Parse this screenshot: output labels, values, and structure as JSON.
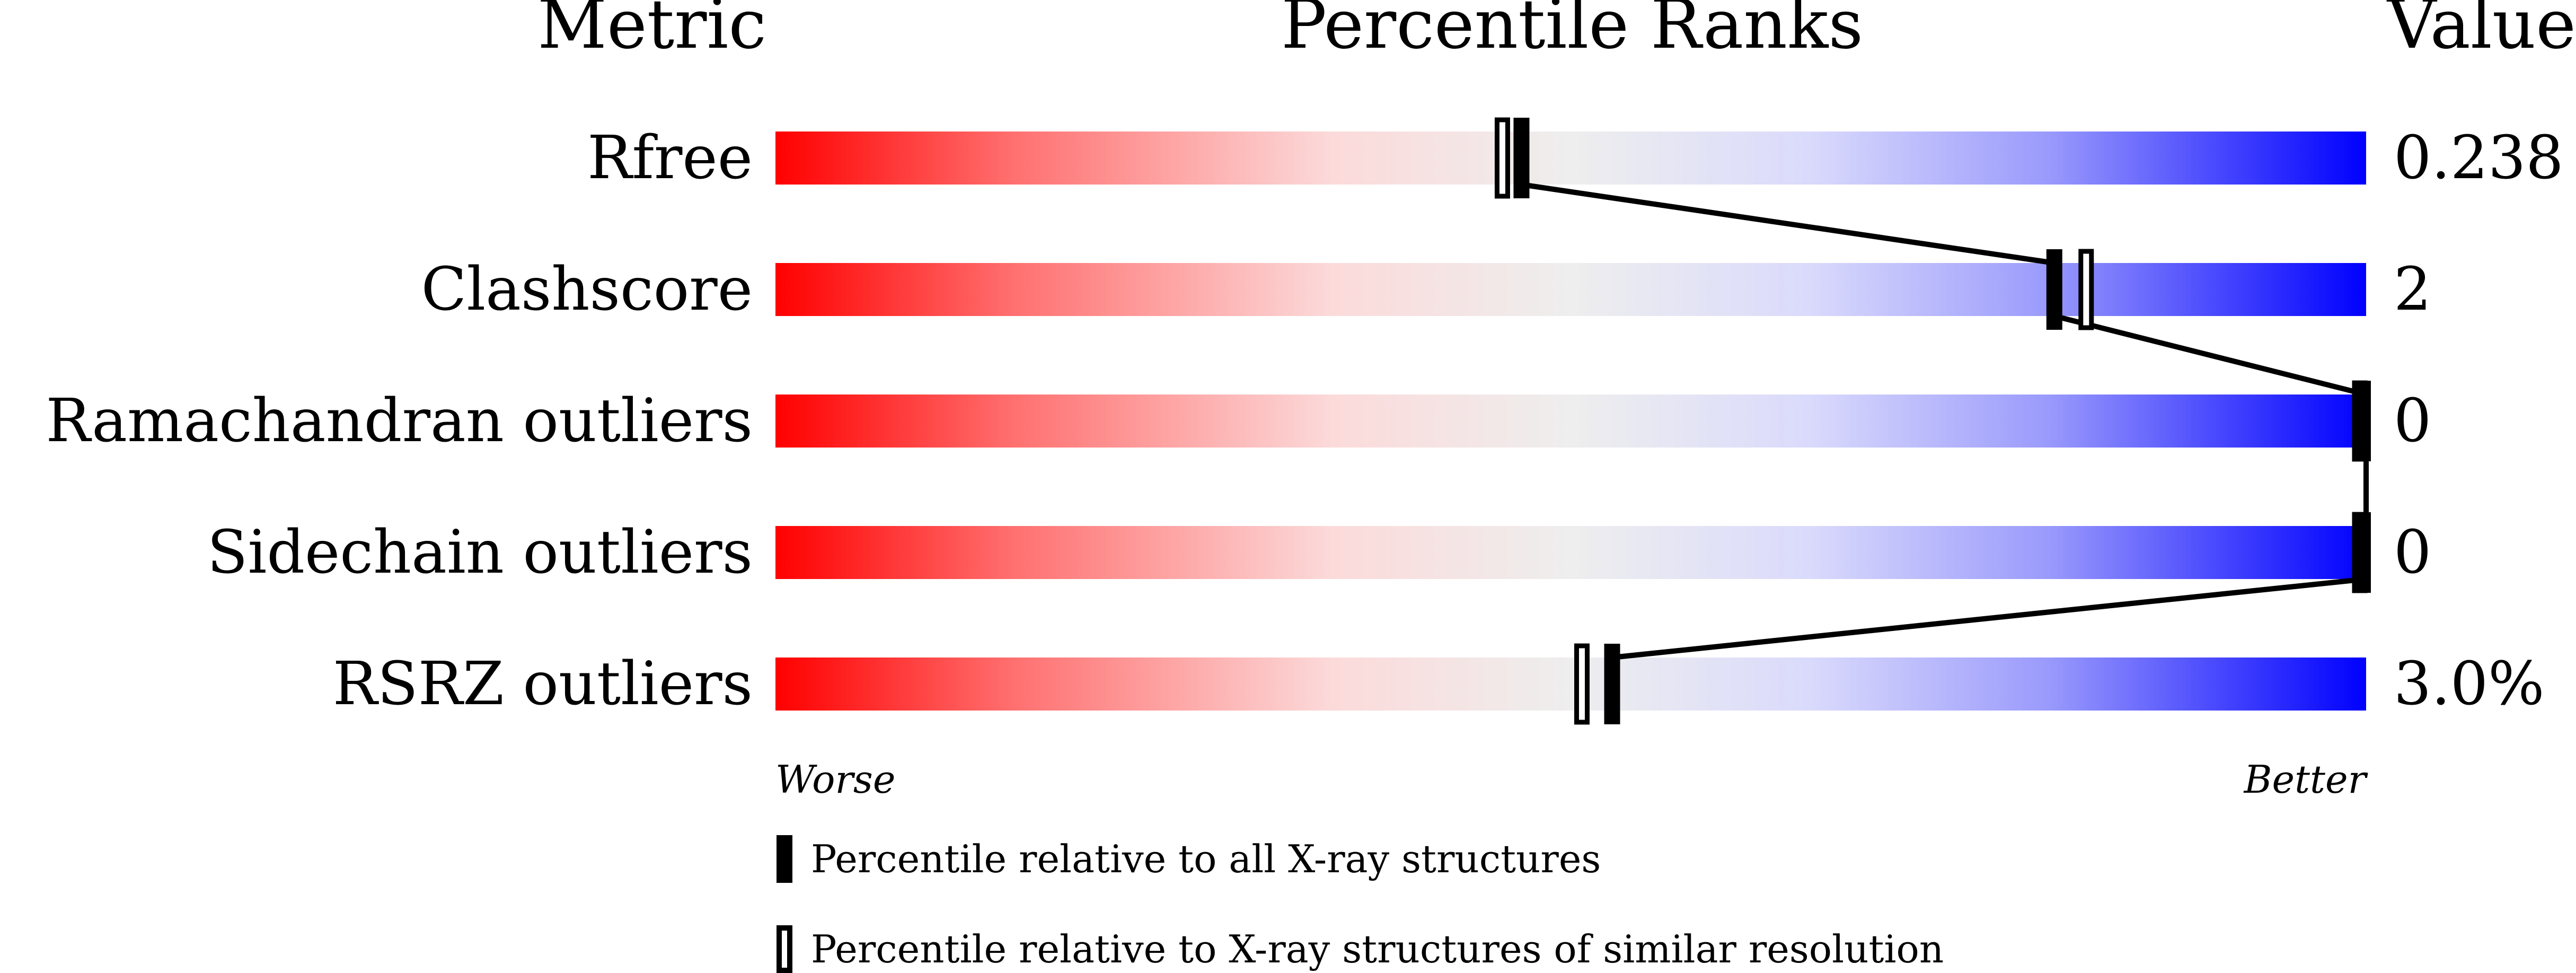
{
  "chart_data": {
    "type": "percentile-bar",
    "headers": {
      "metric": "Metric",
      "ranks": "Percentile Ranks",
      "value": "Value"
    },
    "axis": {
      "left": "Worse",
      "right": "Better"
    },
    "xlim": [
      0,
      100
    ],
    "rows": [
      {
        "metric": "Rfree",
        "value": "0.238",
        "percentile_all": 46.9,
        "percentile_similar": 45.7
      },
      {
        "metric": "Clashscore",
        "value": "2",
        "percentile_all": 80.4,
        "percentile_similar": 82.4
      },
      {
        "metric": "Ramachandran outliers",
        "value": "0",
        "percentile_all": 100,
        "percentile_similar": 100
      },
      {
        "metric": "Sidechain outliers",
        "value": "0",
        "percentile_all": 100,
        "percentile_similar": 100
      },
      {
        "metric": "RSRZ outliers",
        "value": "3.0%",
        "percentile_all": 52.6,
        "percentile_similar": 50.7
      }
    ],
    "legend": {
      "all": "Percentile relative to all X-ray structures",
      "similar": "Percentile relative to X-ray structures of similar resolution"
    },
    "colors": {
      "worse": "#ff0000",
      "mid": "#eeeeee",
      "better": "#0000ff"
    }
  }
}
